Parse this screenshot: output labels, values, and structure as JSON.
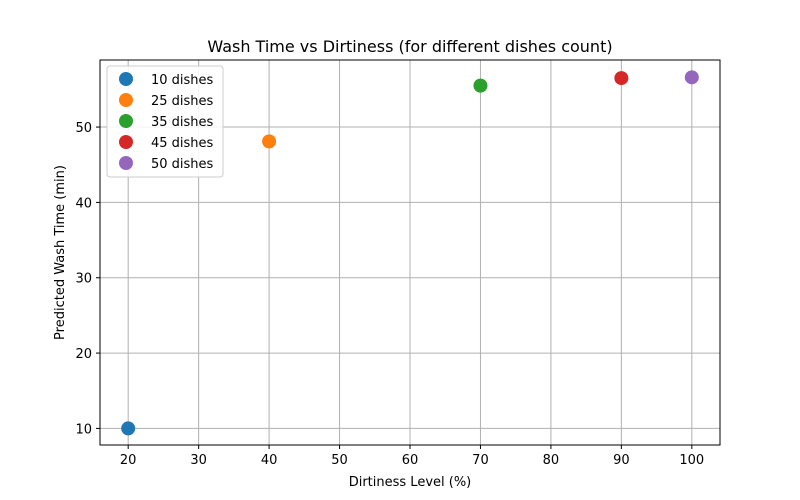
{
  "chart_data": {
    "type": "scatter",
    "title": "Wash Time vs Dirtiness (for different dishes count)",
    "xlabel": "Dirtiness Level (%)",
    "ylabel": "Predicted Wash Time (min)",
    "xlim": [
      16,
      104
    ],
    "ylim": [
      7.8,
      58.9
    ],
    "xticks": [
      20,
      30,
      40,
      50,
      60,
      70,
      80,
      90,
      100
    ],
    "yticks": [
      10,
      20,
      30,
      40,
      50
    ],
    "grid": true,
    "legend_position": "top-left",
    "series": [
      {
        "name": "10 dishes",
        "color": "#1f77b4",
        "points": [
          {
            "x": 20,
            "y": 10.0
          }
        ]
      },
      {
        "name": "25 dishes",
        "color": "#ff7f0e",
        "points": [
          {
            "x": 40,
            "y": 48.1
          }
        ]
      },
      {
        "name": "35 dishes",
        "color": "#2ca02c",
        "points": [
          {
            "x": 70,
            "y": 55.5
          }
        ]
      },
      {
        "name": "45 dishes",
        "color": "#d62728",
        "points": [
          {
            "x": 90,
            "y": 56.5
          }
        ]
      },
      {
        "name": "50 dishes",
        "color": "#9467bd",
        "points": [
          {
            "x": 100,
            "y": 56.6
          }
        ]
      }
    ]
  }
}
